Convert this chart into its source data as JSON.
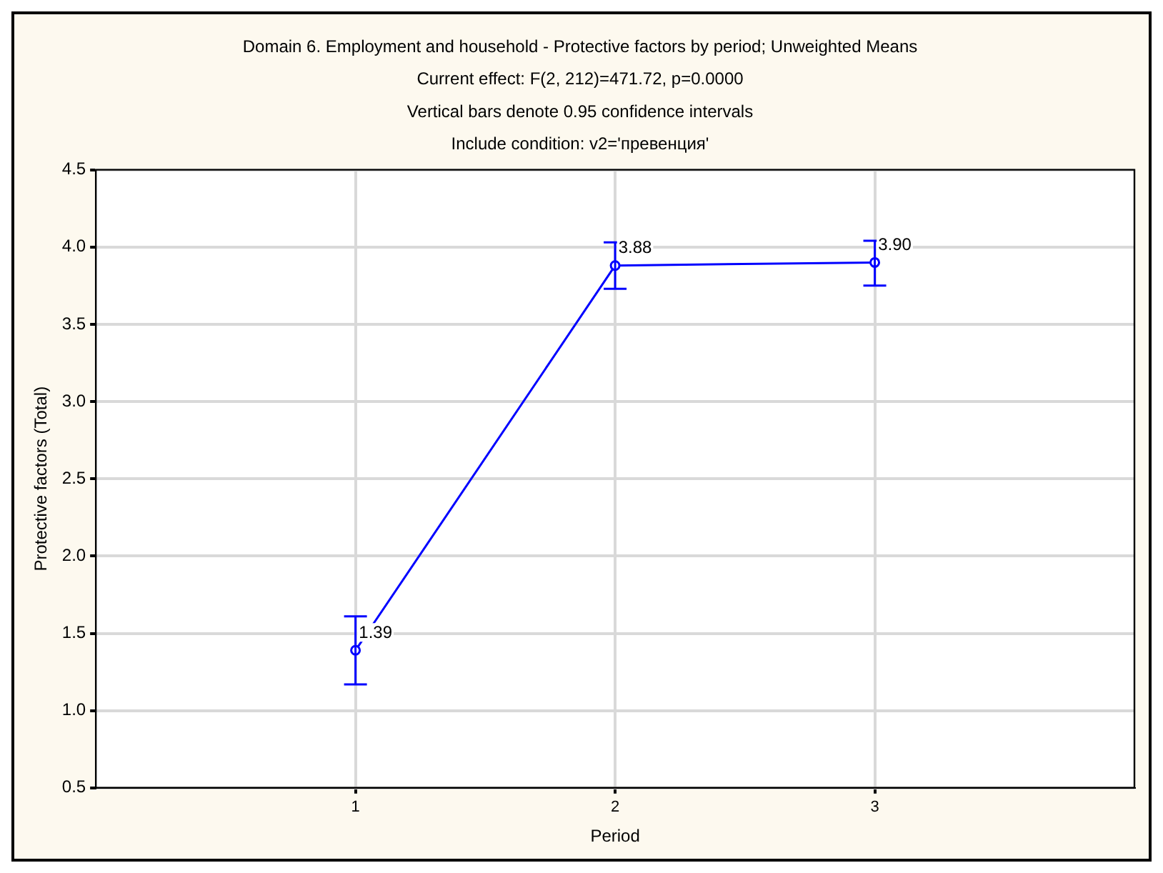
{
  "chart_data": {
    "type": "line",
    "title": "Domain 6. Employment and household - Protective factors by period; Unweighted Means",
    "subtitle": "Current effect: F(2, 212)=471.72, p=0.0000",
    "annotations": [
      "Vertical bars denote 0.95 confidence intervals",
      "Include condition: v2='превенция'"
    ],
    "xlabel": "Period",
    "ylabel": "Protective factors (Total)",
    "x": [
      1,
      2,
      3
    ],
    "series": [
      {
        "color": "#0000ff",
        "values": [
          1.39,
          3.88,
          3.9
        ],
        "errors": [
          [
            1.17,
            1.61
          ],
          [
            3.73,
            4.03
          ],
          [
            3.75,
            4.04
          ]
        ],
        "value_labels": [
          "1.39",
          "3.88",
          "3.90"
        ]
      }
    ],
    "xlim": [
      0,
      4
    ],
    "xticks": [
      1,
      2,
      3
    ],
    "ylim": [
      0.5,
      4.5
    ],
    "yticks": [
      {
        "value": 0.5,
        "label": "0.5"
      },
      {
        "value": 1,
        "label": "1.0"
      },
      {
        "value": 1.5,
        "label": "1.5"
      },
      {
        "value": 2,
        "label": "2.0"
      },
      {
        "value": 2.5,
        "label": "2.5"
      },
      {
        "value": 3,
        "label": "3.0"
      },
      {
        "value": 3.5,
        "label": "3.5"
      },
      {
        "value": 4,
        "label": "4.0"
      },
      {
        "value": 4.5,
        "label": "4.5"
      }
    ],
    "grid": true,
    "legend": false,
    "marker": "circle",
    "line_style": "solid"
  }
}
